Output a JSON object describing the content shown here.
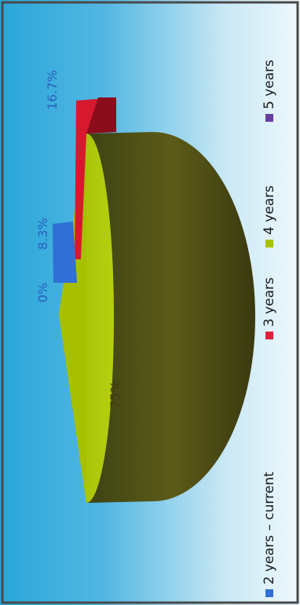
{
  "chart_data": {
    "type": "pie",
    "style": "3d",
    "categories": [
      "2 years – current",
      "3 years",
      "4 years",
      "5 years"
    ],
    "values": [
      0,
      16.7,
      75,
      8.3
    ],
    "labels": [
      "0%",
      "16.7%",
      "75%",
      "8.3%"
    ],
    "colors": {
      "2 years – current": "#2f6fd6",
      "3 years": "#e0203a",
      "4 years": "#a8c200",
      "5 years": "#6a3fa0"
    },
    "legend_position": "bottom",
    "background": {
      "top": "#2ea9da",
      "bottom": "#e9f5fb"
    }
  },
  "legend": [
    {
      "label": "2 years – current",
      "color": "#2f6fd6"
    },
    {
      "label": "3 years",
      "color": "#e0203a"
    },
    {
      "label": "4 years",
      "color": "#a8c200"
    },
    {
      "label": "5 years",
      "color": "#6a3fa0"
    }
  ],
  "slice_labels": {
    "zero": "0%",
    "small": "8.3%",
    "red": "16.7%",
    "big": "75%"
  }
}
